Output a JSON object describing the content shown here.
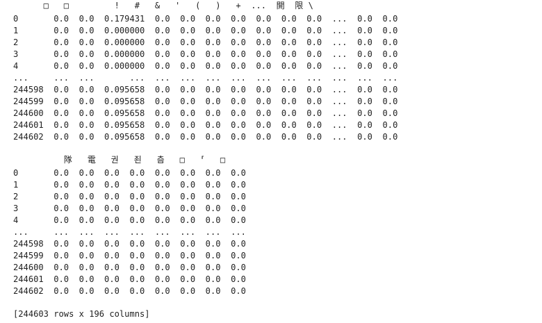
{
  "console": {
    "block1": {
      "header": "      □   □         !   #   &   '   (   )   +  ...  開  限 \\",
      "rows": [
        "0       0.0  0.0  0.179431  0.0  0.0  0.0  0.0  0.0  0.0  0.0  ...  0.0  0.0",
        "1       0.0  0.0  0.000000  0.0  0.0  0.0  0.0  0.0  0.0  0.0  ...  0.0  0.0",
        "2       0.0  0.0  0.000000  0.0  0.0  0.0  0.0  0.0  0.0  0.0  ...  0.0  0.0",
        "3       0.0  0.0  0.000000  0.0  0.0  0.0  0.0  0.0  0.0  0.0  ...  0.0  0.0",
        "4       0.0  0.0  0.000000  0.0  0.0  0.0  0.0  0.0  0.0  0.0  ...  0.0  0.0",
        "...     ...  ...       ...  ...  ...  ...  ...  ...  ...  ...  ...  ...  ...",
        "244598  0.0  0.0  0.095658  0.0  0.0  0.0  0.0  0.0  0.0  0.0  ...  0.0  0.0",
        "244599  0.0  0.0  0.095658  0.0  0.0  0.0  0.0  0.0  0.0  0.0  ...  0.0  0.0",
        "244600  0.0  0.0  0.095658  0.0  0.0  0.0  0.0  0.0  0.0  0.0  ...  0.0  0.0",
        "244601  0.0  0.0  0.095658  0.0  0.0  0.0  0.0  0.0  0.0  0.0  ...  0.0  0.0",
        "244602  0.0  0.0  0.095658  0.0  0.0  0.0  0.0  0.0  0.0  0.0  ...  0.0  0.0"
      ]
    },
    "block2": {
      "header": "          隊   電   권   죈   츰   □   ⸢   □",
      "rows": [
        "0       0.0  0.0  0.0  0.0  0.0  0.0  0.0  0.0",
        "1       0.0  0.0  0.0  0.0  0.0  0.0  0.0  0.0",
        "2       0.0  0.0  0.0  0.0  0.0  0.0  0.0  0.0",
        "3       0.0  0.0  0.0  0.0  0.0  0.0  0.0  0.0",
        "4       0.0  0.0  0.0  0.0  0.0  0.0  0.0  0.0",
        "...     ...  ...  ...  ...  ...  ...  ...  ...",
        "244598  0.0  0.0  0.0  0.0  0.0  0.0  0.0  0.0",
        "244599  0.0  0.0  0.0  0.0  0.0  0.0  0.0  0.0",
        "244600  0.0  0.0  0.0  0.0  0.0  0.0  0.0  0.0",
        "244601  0.0  0.0  0.0  0.0  0.0  0.0  0.0  0.0",
        "244602  0.0  0.0  0.0  0.0  0.0  0.0  0.0  0.0"
      ]
    },
    "footer": "[244603 rows x 196 columns]"
  }
}
